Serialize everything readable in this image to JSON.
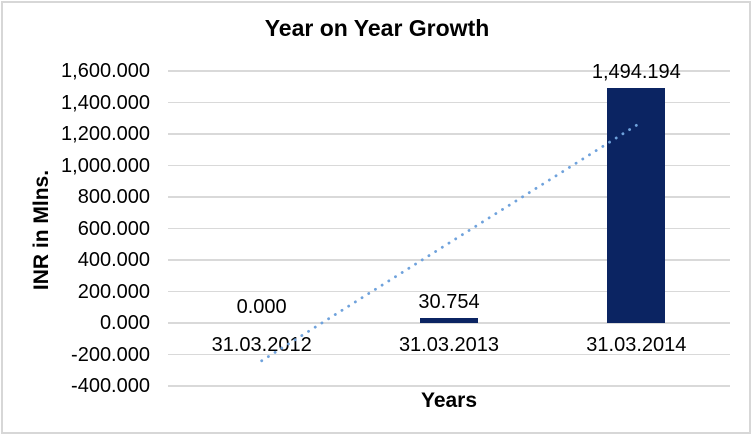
{
  "chart_data": {
    "type": "bar",
    "title": "Year on Year Growth",
    "xlabel": "Years",
    "ylabel": "INR in Mlns.",
    "categories": [
      "31.03.2012",
      "31.03.2013",
      "31.03.2014"
    ],
    "values": [
      0,
      30.754,
      1494.194
    ],
    "data_labels": [
      "0.000",
      "30.754",
      "1,494.194"
    ],
    "ytick_labels": [
      "1,600.000",
      "1,400.000",
      "1,200.000",
      "1,000.000",
      "800.000",
      "600.000",
      "400.000",
      "200.000",
      "0.000",
      "-200.000",
      "-400.000"
    ],
    "ylim": [
      -400,
      1600
    ],
    "ystep": 200,
    "grid": true,
    "legend": "none",
    "series": [
      {
        "name": "INR in Mlns.",
        "values": [
          0,
          30.754,
          1494.194
        ]
      }
    ],
    "trendline": {
      "style": "dotted",
      "start_value": -240,
      "end_value": 1255
    },
    "colors": {
      "bar": "#0B2462",
      "trendline": "#6FA2DC",
      "gridline": "#D9D9D9",
      "text": "#000000",
      "border": "#D7D7D7"
    }
  }
}
